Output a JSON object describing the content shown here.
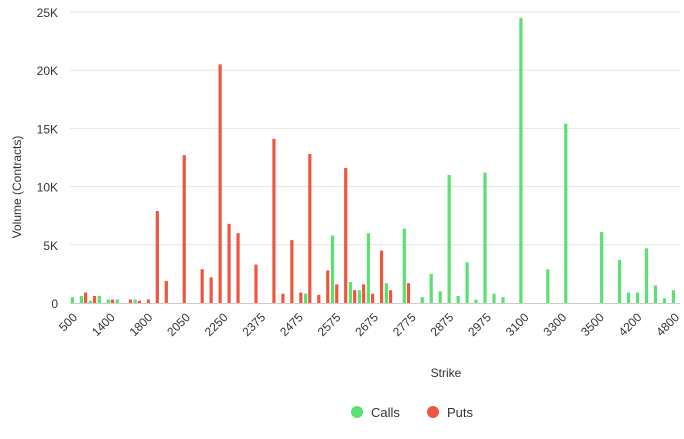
{
  "chart_data": {
    "type": "bar",
    "xlabel": "Strike",
    "ylabel": "Volume (Contracts)",
    "ylim": [
      0,
      25000
    ],
    "y_ticks": [
      "0",
      "5K",
      "10K",
      "15K",
      "20K",
      "25K"
    ],
    "y_tick_values": [
      0,
      5000,
      10000,
      15000,
      20000,
      25000
    ],
    "x_tick_labels": [
      "500",
      "1400",
      "1800",
      "2050",
      "2250",
      "2375",
      "2475",
      "2575",
      "2675",
      "2775",
      "2875",
      "2975",
      "3100",
      "3300",
      "3500",
      "4200",
      "4800"
    ],
    "grid": true,
    "legend_position": "bottom",
    "colors": {
      "calls": "#5be072",
      "puts": "#ef5640",
      "grid": "#e6e6e6",
      "axis_text": "#333333"
    },
    "series": [
      {
        "name": "Calls",
        "values": [
          500,
          600,
          200,
          600,
          300,
          300,
          0,
          300,
          0,
          0,
          0,
          0,
          0,
          0,
          0,
          0,
          0,
          0,
          0,
          0,
          0,
          0,
          0,
          0,
          0,
          0,
          800,
          0,
          0,
          5800,
          0,
          1800,
          1100,
          6000,
          0,
          1700,
          0,
          6400,
          0,
          500,
          2500,
          1000,
          11000,
          600,
          3500,
          300,
          11200,
          800,
          500,
          0,
          24500,
          0,
          0,
          2900,
          0,
          15400,
          0,
          0,
          0,
          6100,
          0,
          3700,
          900,
          900,
          4700,
          1500,
          400,
          1100
        ]
      },
      {
        "name": "Puts",
        "values": [
          0,
          900,
          600,
          0,
          300,
          0,
          300,
          200,
          300,
          7900,
          1900,
          0,
          12700,
          0,
          2900,
          2200,
          20500,
          6800,
          6000,
          0,
          3300,
          0,
          14100,
          800,
          5400,
          900,
          12800,
          700,
          2800,
          1600,
          11600,
          1100,
          1600,
          800,
          4500,
          1100,
          0,
          1700,
          0,
          0,
          0,
          0,
          0,
          0,
          0,
          0,
          0,
          0,
          0,
          0,
          0,
          0,
          0,
          0,
          0,
          0,
          0,
          0,
          0,
          0,
          0,
          0,
          0,
          0,
          0,
          0,
          0,
          0
        ]
      }
    ]
  }
}
